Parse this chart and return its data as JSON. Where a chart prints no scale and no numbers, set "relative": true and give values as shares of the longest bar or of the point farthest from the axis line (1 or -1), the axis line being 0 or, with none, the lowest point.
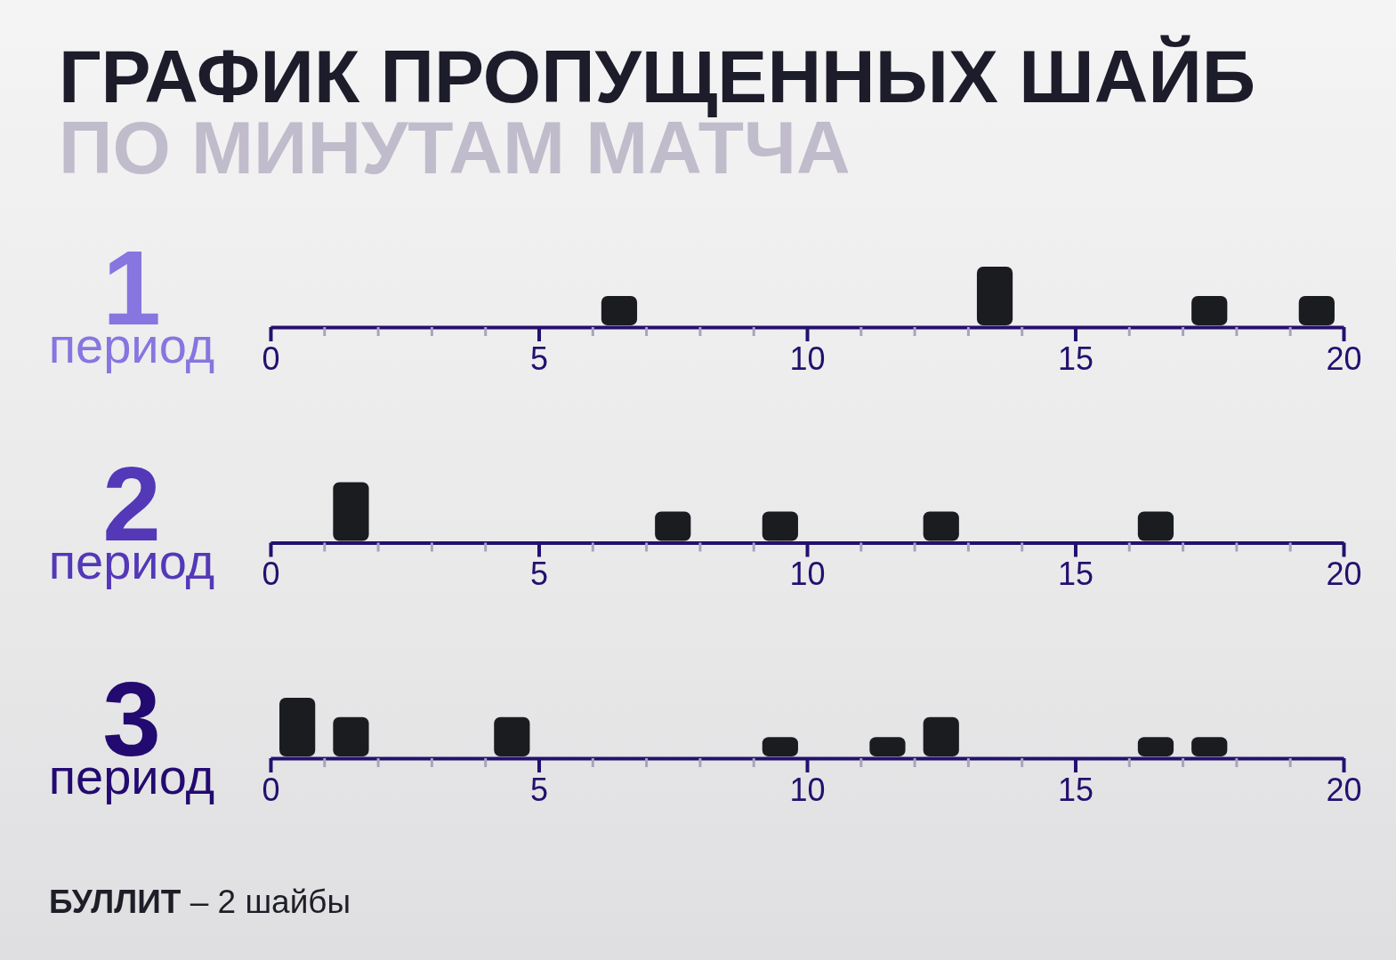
{
  "chart_data": [
    {
      "type": "bar",
      "title": "ГРАФИК ПРОПУЩЕННЫХ ШАЙБ",
      "subtitle": "ПО МИНУТАМ МАТЧА",
      "ylabel": "1 период",
      "relative": true,
      "x": [
        6.5,
        13.5,
        17.5,
        19.5
      ],
      "values": [
        0.5,
        1,
        0.5,
        0.5
      ],
      "color": "#1a1c20",
      "xlim": [
        0,
        20
      ],
      "xticks": [
        0,
        {
          "value": 1,
          "label": null
        },
        {
          "value": 2,
          "label": null
        },
        {
          "value": 3,
          "label": null
        },
        {
          "value": 4,
          "label": null
        },
        5,
        {
          "value": 6,
          "label": null
        },
        {
          "value": 7,
          "label": null
        },
        {
          "value": 8,
          "label": null
        },
        {
          "value": 9,
          "label": null
        },
        10,
        {
          "value": 11,
          "label": null
        },
        {
          "value": 12,
          "label": null
        },
        {
          "value": 13,
          "label": null
        },
        {
          "value": 14,
          "label": null
        },
        15,
        {
          "value": 16,
          "label": null
        },
        {
          "value": 17,
          "label": null
        },
        {
          "value": 18,
          "label": null
        },
        {
          "value": 19,
          "label": null
        },
        20
      ]
    },
    {
      "type": "bar",
      "ylabel": "2 период",
      "relative": true,
      "x": [
        1.5,
        7.5,
        9.5,
        12.5,
        16.5
      ],
      "values": [
        1,
        0.5,
        0.5,
        0.5,
        0.5
      ],
      "color": "#1a1c20",
      "xlim": [
        0,
        20
      ],
      "xticks": [
        0,
        {
          "value": 1,
          "label": null
        },
        {
          "value": 2,
          "label": null
        },
        {
          "value": 3,
          "label": null
        },
        {
          "value": 4,
          "label": null
        },
        5,
        {
          "value": 6,
          "label": null
        },
        {
          "value": 7,
          "label": null
        },
        {
          "value": 8,
          "label": null
        },
        {
          "value": 9,
          "label": null
        },
        10,
        {
          "value": 11,
          "label": null
        },
        {
          "value": 12,
          "label": null
        },
        {
          "value": 13,
          "label": null
        },
        {
          "value": 14,
          "label": null
        },
        15,
        {
          "value": 16,
          "label": null
        },
        {
          "value": 17,
          "label": null
        },
        {
          "value": 18,
          "label": null
        },
        {
          "value": 19,
          "label": null
        },
        20
      ]
    },
    {
      "type": "bar",
      "ylabel": "3 период",
      "relative": true,
      "annotations": [
        "БУЛЛИТ – 2 шайбы"
      ],
      "x": [
        0.5,
        1.5,
        4.5,
        9.5,
        11.5,
        12.5,
        16.5,
        17.5
      ],
      "values": [
        1,
        0.67,
        0.67,
        0.33,
        0.33,
        0.67,
        0.33,
        0.33
      ],
      "color": "#1a1c20",
      "xlim": [
        0,
        20
      ],
      "xticks": [
        0,
        {
          "value": 1,
          "label": null
        },
        {
          "value": 2,
          "label": null
        },
        {
          "value": 3,
          "label": null
        },
        {
          "value": 4,
          "label": null
        },
        5,
        {
          "value": 6,
          "label": null
        },
        {
          "value": 7,
          "label": null
        },
        {
          "value": 8,
          "label": null
        },
        {
          "value": 9,
          "label": null
        },
        10,
        {
          "value": 11,
          "label": null
        },
        {
          "value": 12,
          "label": null
        },
        {
          "value": 13,
          "label": null
        },
        {
          "value": 14,
          "label": null
        },
        15,
        {
          "value": 16,
          "label": null
        },
        {
          "value": 17,
          "label": null
        },
        {
          "value": 18,
          "label": null
        },
        {
          "value": 19,
          "label": null
        },
        20
      ]
    }
  ]
}
